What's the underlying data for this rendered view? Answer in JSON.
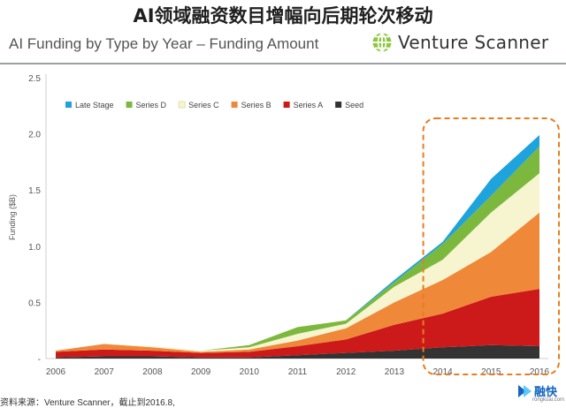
{
  "headline": "AI领域融资数目增幅向后期轮次移动",
  "brand": {
    "name": "Venture Scanner"
  },
  "footer": {
    "source": "资料来源：Venture Scanner，截止到2016.8,",
    "brand": "融快",
    "site": "rongkuai.com"
  },
  "chart_data": {
    "type": "area",
    "stacked": true,
    "title": "AI Funding by Type by Year – Funding Amount",
    "xlabel": "",
    "ylabel": "Funding ($B)",
    "x": [
      "2006",
      "2007",
      "2008",
      "2009",
      "2010",
      "2011",
      "2012",
      "2013",
      "2014",
      "2015",
      "2016"
    ],
    "ylim": [
      0,
      2.5
    ],
    "yticks": [
      0,
      0.5,
      1.0,
      1.5,
      2.0,
      2.5
    ],
    "ytick_labels": [
      "-",
      "0.5",
      "1.0",
      "1.5",
      "2.0",
      "2.5"
    ],
    "legend_position": "top-left",
    "highlight": {
      "from": "2014",
      "to": "2016",
      "style": "dashed-orange-outline"
    },
    "series": [
      {
        "name": "Seed",
        "color": "#333333",
        "values": [
          0.01,
          0.02,
          0.02,
          0.01,
          0.01,
          0.03,
          0.05,
          0.07,
          0.1,
          0.12,
          0.11
        ]
      },
      {
        "name": "Series A",
        "color": "#cc1a1a",
        "values": [
          0.05,
          0.06,
          0.05,
          0.04,
          0.05,
          0.08,
          0.12,
          0.23,
          0.3,
          0.43,
          0.51
        ]
      },
      {
        "name": "Series B",
        "color": "#f0883a",
        "values": [
          0.01,
          0.05,
          0.03,
          0.01,
          0.02,
          0.05,
          0.1,
          0.2,
          0.3,
          0.4,
          0.68
        ]
      },
      {
        "name": "Series C",
        "color": "#f6f5d0",
        "values": [
          0.0,
          0.0,
          0.01,
          0.01,
          0.02,
          0.06,
          0.04,
          0.14,
          0.18,
          0.35,
          0.35
        ]
      },
      {
        "name": "Series D",
        "color": "#7cb83e",
        "values": [
          0.0,
          0.0,
          0.0,
          0.0,
          0.02,
          0.06,
          0.03,
          0.04,
          0.14,
          0.15,
          0.24
        ]
      },
      {
        "name": "Late Stage",
        "color": "#1fa3dc",
        "values": [
          0.0,
          0.0,
          0.0,
          0.0,
          0.0,
          0.0,
          0.0,
          0.02,
          0.02,
          0.15,
          0.1
        ]
      }
    ]
  }
}
